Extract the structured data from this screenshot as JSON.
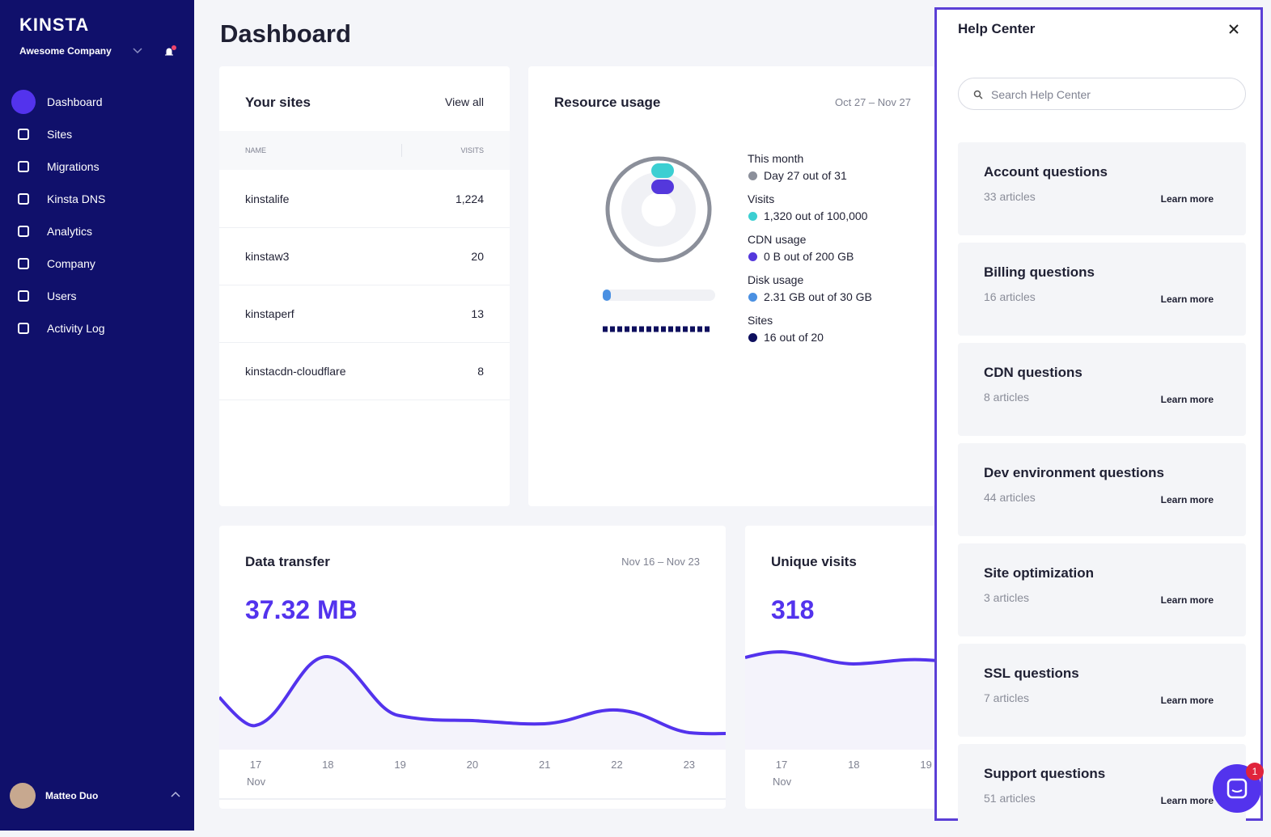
{
  "sidebar": {
    "logo": "KINSTA",
    "company": "Awesome Company",
    "nav": [
      "Dashboard",
      "Sites",
      "Migrations",
      "Kinsta DNS",
      "Analytics",
      "Company",
      "Users",
      "Activity Log"
    ],
    "user": "Matteo Duo"
  },
  "header": {
    "title": "Dashboard"
  },
  "your_sites": {
    "title": "Your sites",
    "view_all": "View all",
    "columns": [
      "NAME",
      "VISITS"
    ],
    "rows": [
      [
        "kinstalife",
        "1,224"
      ],
      [
        "kinstaw3",
        "20"
      ],
      [
        "kinstaperf",
        "13"
      ],
      [
        "kinstacdn-cloudflare",
        "8"
      ]
    ]
  },
  "resource_usage": {
    "title": "Resource usage",
    "date_range": "Oct 27 – Nov 27",
    "items": [
      {
        "label": "This month",
        "value": "Day 27 out of 31"
      },
      {
        "label": "Visits",
        "value": "1,320 out of 100,000"
      },
      {
        "label": "CDN usage",
        "value": "0 B out of 200 GB"
      },
      {
        "label": "Disk usage",
        "value": "2.31 GB out of 30 GB"
      },
      {
        "label": "Sites",
        "value": "16 out of 20"
      }
    ]
  },
  "data_transfer": {
    "title": "Data transfer",
    "date_range": "Nov 16 – Nov 23",
    "total": "37.32 MB",
    "x_labels": [
      "17",
      "18",
      "19",
      "20",
      "21",
      "22",
      "23"
    ],
    "month": "Nov"
  },
  "unique_visits": {
    "title": "Unique visits",
    "total": "318",
    "x_labels": [
      "17",
      "18",
      "19"
    ],
    "month": "Nov"
  },
  "help_center": {
    "title": "Help Center",
    "search_placeholder": "Search Help Center",
    "items": [
      {
        "title": "Account questions",
        "count": "33 articles",
        "link": "Learn more"
      },
      {
        "title": "Billing questions",
        "count": "16 articles",
        "link": "Learn more"
      },
      {
        "title": "CDN questions",
        "count": "8 articles",
        "link": "Learn more"
      },
      {
        "title": "Dev environment questions",
        "count": "44 articles",
        "link": "Learn more"
      },
      {
        "title": "Site optimization",
        "count": "3 articles",
        "link": "Learn more"
      },
      {
        "title": "SSL questions",
        "count": "7 articles",
        "link": "Learn more"
      },
      {
        "title": "Support questions",
        "count": "51 articles",
        "link": "Learn more"
      }
    ]
  },
  "chat": {
    "badge": "1"
  }
}
